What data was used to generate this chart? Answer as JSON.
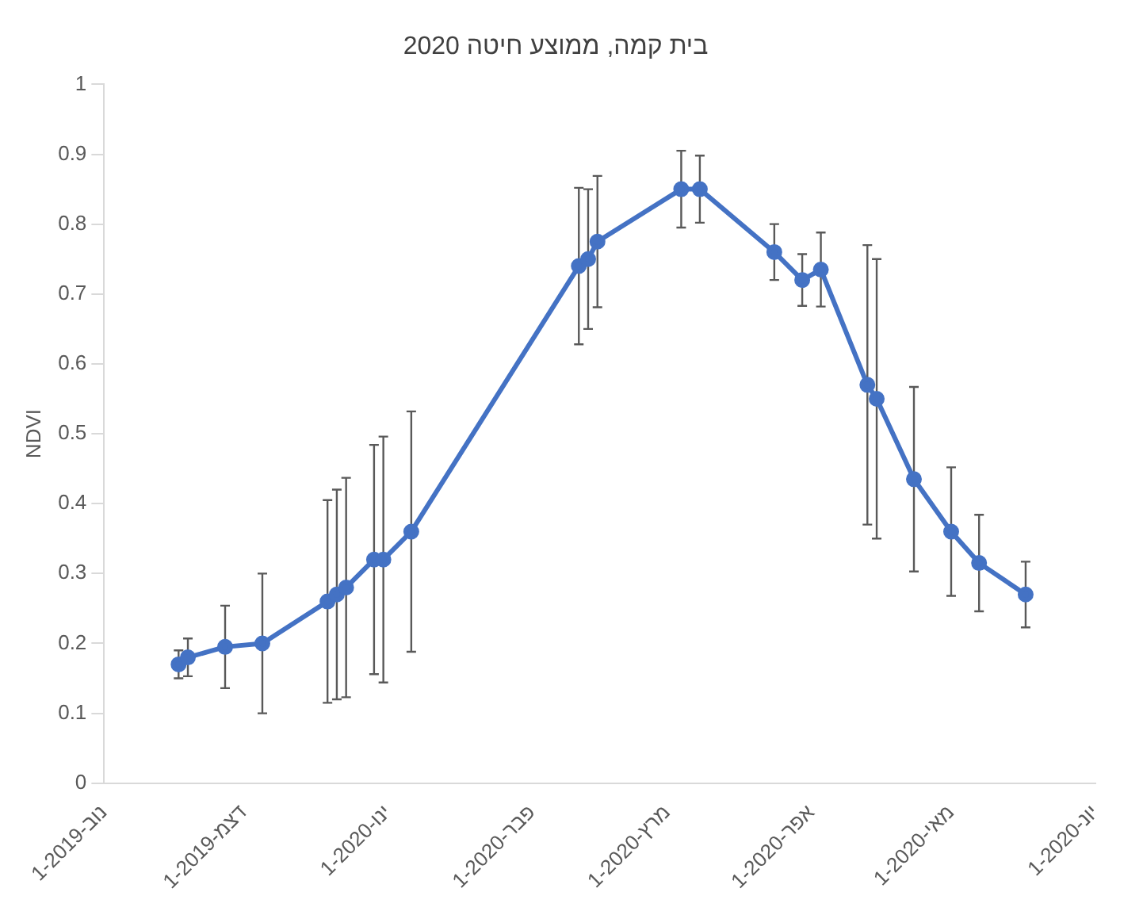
{
  "chart_data": {
    "type": "line",
    "title": "בית קמה, ממוצע חיטה 2020",
    "ylabel": "NDVI",
    "x": [
      "2019-11-17",
      "2019-11-19",
      "2019-11-27",
      "2019-12-05",
      "2019-12-19",
      "2019-12-21",
      "2019-12-23",
      "2019-12-29",
      "2019-12-31",
      "2020-01-06",
      "2020-02-11",
      "2020-02-13",
      "2020-02-15",
      "2020-03-04",
      "2020-03-08",
      "2020-03-24",
      "2020-03-30",
      "2020-04-03",
      "2020-04-13",
      "2020-04-15",
      "2020-04-23",
      "2020-05-01",
      "2020-05-07",
      "2020-05-17"
    ],
    "values": [
      0.17,
      0.18,
      0.195,
      0.2,
      0.26,
      0.27,
      0.28,
      0.32,
      0.32,
      0.36,
      0.74,
      0.75,
      0.775,
      0.85,
      0.85,
      0.76,
      0.72,
      0.735,
      0.57,
      0.55,
      0.435,
      0.36,
      0.315,
      0.27
    ],
    "errors": [
      0.02,
      0.027,
      0.059,
      0.1,
      0.145,
      0.15,
      0.157,
      0.164,
      0.176,
      0.172,
      0.112,
      0.1,
      0.094,
      0.055,
      0.048,
      0.04,
      0.037,
      0.053,
      0.2,
      0.2,
      0.132,
      0.092,
      0.069,
      0.047
    ],
    "color": "#4472c4",
    "marker": "circle",
    "line_style": "solid",
    "grid": false,
    "xlim": [
      "2019-11-01",
      "2020-06-01"
    ],
    "xticks": [
      {
        "value": "2019-11-01",
        "label": "1-נוב-2019"
      },
      {
        "value": "2019-12-01",
        "label": "1-דצמ-2019"
      },
      {
        "value": "2020-01-01",
        "label": "1-ינו-2020"
      },
      {
        "value": "2020-02-01",
        "label": "1-פבר-2020"
      },
      {
        "value": "2020-03-01",
        "label": "1-מרץ-2020"
      },
      {
        "value": "2020-04-01",
        "label": "1-אפר-2020"
      },
      {
        "value": "2020-05-01",
        "label": "1-מאי-2020"
      },
      {
        "value": "2020-06-01",
        "label": "1-יונ-2020"
      }
    ],
    "ylim": [
      0,
      1
    ],
    "yticks": [
      0,
      0.1,
      0.2,
      0.3,
      0.4,
      0.5,
      0.6,
      0.7,
      0.8,
      0.9,
      1
    ]
  }
}
